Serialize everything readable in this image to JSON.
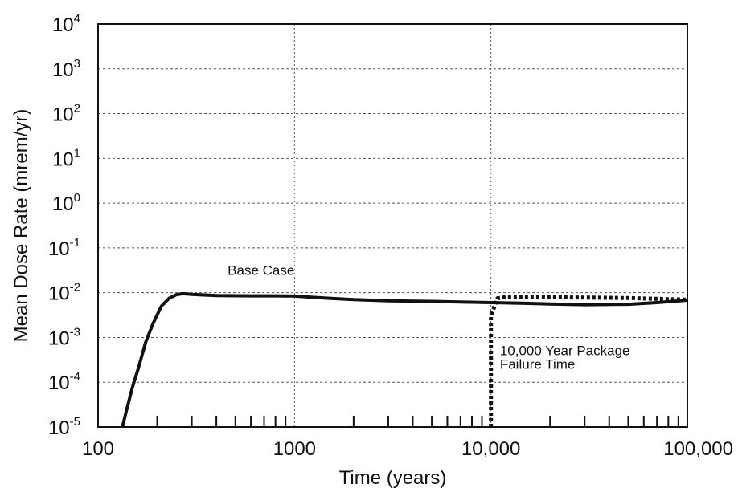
{
  "chart_data": {
    "type": "line",
    "xlabel": "Time (years)",
    "ylabel": "Mean Dose Rate (mrem/yr)",
    "x_scale": "log",
    "y_scale": "log",
    "xlim": [
      100,
      100000
    ],
    "ylim": [
      1e-05,
      10000
    ],
    "grid": true,
    "x_ticks": [
      {
        "value": 100,
        "label": "100"
      },
      {
        "value": 1000,
        "label": "1000"
      },
      {
        "value": 10000,
        "label": "10,000"
      },
      {
        "value": 100000,
        "label": "100,000"
      }
    ],
    "y_ticks": [
      {
        "value": 10000,
        "base": "10",
        "exp": "4"
      },
      {
        "value": 1000,
        "base": "10",
        "exp": "3"
      },
      {
        "value": 100,
        "base": "10",
        "exp": "2"
      },
      {
        "value": 10,
        "base": "10",
        "exp": "1"
      },
      {
        "value": 1,
        "base": "10",
        "exp": "0"
      },
      {
        "value": 0.1,
        "base": "10",
        "exp": "-1"
      },
      {
        "value": 0.01,
        "base": "10",
        "exp": "-2"
      },
      {
        "value": 0.001,
        "base": "10",
        "exp": "-3"
      },
      {
        "value": 0.0001,
        "base": "10",
        "exp": "-4"
      },
      {
        "value": 1e-05,
        "base": "10",
        "exp": "-5"
      }
    ],
    "series": [
      {
        "style": "solid",
        "x": [
          133,
          140,
          150,
          160,
          175,
          190,
          210,
          230,
          250,
          270,
          300,
          400,
          600,
          800,
          1000,
          1500,
          2000,
          3000,
          5000,
          7000,
          10000,
          15000,
          20000,
          30000,
          50000,
          70000,
          100000
        ],
        "y": [
          1e-05,
          2.5e-05,
          8e-05,
          0.0002,
          0.0008,
          0.002,
          0.005,
          0.0075,
          0.009,
          0.0095,
          0.0092,
          0.0086,
          0.0085,
          0.0085,
          0.0084,
          0.0075,
          0.007,
          0.0066,
          0.0064,
          0.0062,
          0.006,
          0.0058,
          0.0056,
          0.0054,
          0.0055,
          0.006,
          0.0068
        ]
      },
      {
        "style": "dotted",
        "x": [
          10000,
          10000,
          10000,
          10800,
          12000,
          15000,
          20000,
          30000,
          50000,
          70000,
          100000
        ],
        "y": [
          1e-05,
          0.0001,
          0.003,
          0.0075,
          0.008,
          0.008,
          0.0079,
          0.0078,
          0.0076,
          0.0073,
          0.007
        ]
      }
    ],
    "annotations": [
      {
        "text": "Base Case",
        "x": 1000,
        "y": 0.025
      },
      {
        "text": "10,000 Year Package",
        "x": 10500,
        "y": 0.0004
      },
      {
        "text": "Failure Time",
        "x": 10500,
        "y": 0.0002
      }
    ]
  }
}
